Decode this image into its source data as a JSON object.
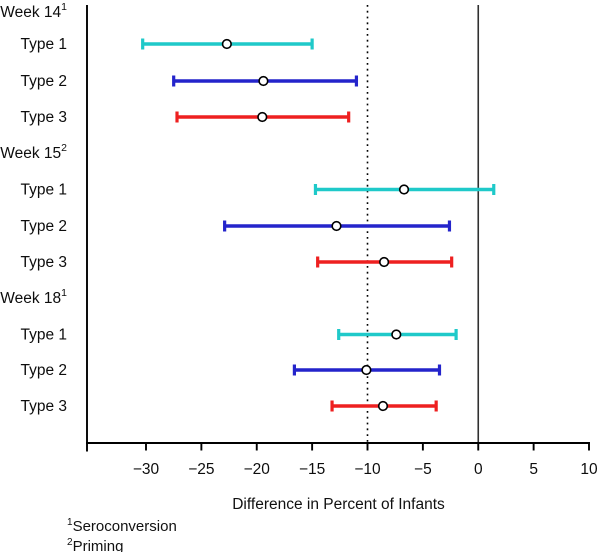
{
  "chart_data": {
    "type": "forest-errorbar",
    "title": "",
    "xlabel": "Difference in Percent of Infants",
    "ylabel": "",
    "x_range": [
      -35.3,
      10.1
    ],
    "x_ticks": [
      -30,
      -25,
      -20,
      -15,
      -10,
      -5,
      0,
      5,
      10
    ],
    "x_tick_labels": [
      "−30",
      "−25",
      "−20",
      "−15",
      "−10",
      "−5",
      "0",
      "5",
      "10"
    ],
    "grid": false,
    "legend": "none",
    "reference_lines": [
      {
        "x": -10,
        "style": "dotted",
        "color": "#000000"
      },
      {
        "x": 0,
        "style": "solid",
        "color": "#303030"
      }
    ],
    "series_colors": {
      "Type 1": "#1FC9C9",
      "Type 2": "#2424CB",
      "Type 3": "#EE2020"
    },
    "groups": [
      {
        "label": "Week 14",
        "sup": "1",
        "rows": [
          {
            "label": "Type 1",
            "low": -30.3,
            "mid": -22.7,
            "high": -15.0,
            "color": "#1FC9C9"
          },
          {
            "label": "Type 2",
            "low": -27.5,
            "mid": -19.4,
            "high": -11.0,
            "color": "#2424CB"
          },
          {
            "label": "Type 3",
            "low": -27.2,
            "mid": -19.5,
            "high": -11.7,
            "color": "#EE2020"
          }
        ]
      },
      {
        "label": "Week 15",
        "sup": "2",
        "rows": [
          {
            "label": "Type 1",
            "low": -14.7,
            "mid": -6.7,
            "high": 1.4,
            "color": "#1FC9C9"
          },
          {
            "label": "Type 2",
            "low": -22.9,
            "mid": -12.8,
            "high": -2.6,
            "color": "#2424CB"
          },
          {
            "label": "Type 3",
            "low": -14.5,
            "mid": -8.5,
            "high": -2.4,
            "color": "#EE2020"
          }
        ]
      },
      {
        "label": "Week 18",
        "sup": "1",
        "rows": [
          {
            "label": "Type 1",
            "low": -12.6,
            "mid": -7.4,
            "high": -2.0,
            "color": "#1FC9C9"
          },
          {
            "label": "Type 2",
            "low": -16.6,
            "mid": -10.1,
            "high": -3.5,
            "color": "#2424CB"
          },
          {
            "label": "Type 3",
            "low": -13.2,
            "mid": -8.6,
            "high": -3.8,
            "color": "#EE2020"
          }
        ]
      }
    ],
    "footnotes": [
      {
        "sup": "1",
        "text": "Seroconversion"
      },
      {
        "sup": "2",
        "text": "Priming"
      }
    ]
  }
}
